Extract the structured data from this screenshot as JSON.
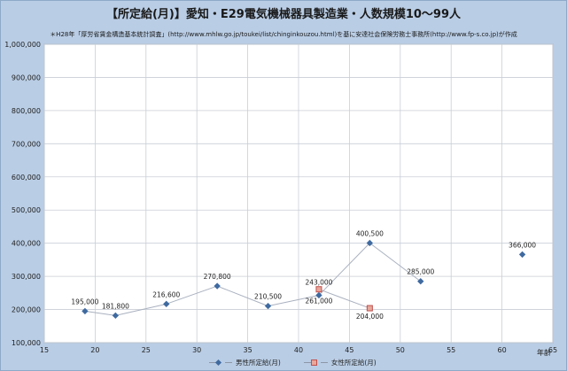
{
  "title": "【所定給(月)】愛知・E29電気機械器具製造業・人数規模10～99人",
  "subtitle": "＊H28年「厚労省賃金構造基本統計調査」(http://www.mhlw.go.jp/toukei/list/chinginkouzou.html)を基に安達社会保険労務士事務所(http://www.fp-s.co.jp)が作成",
  "colors": {
    "background": "#b9cde5",
    "plot_bg": "#ffffff",
    "male": "#3f6aa0",
    "female": "#c0504d",
    "line": "#a9b1bf"
  },
  "chart_data": {
    "type": "scatter",
    "x_unit_label": "年齢",
    "xlim": [
      15,
      65
    ],
    "ylim": [
      100000,
      1000000
    ],
    "x_ticks": [
      15,
      20,
      25,
      30,
      35,
      40,
      45,
      50,
      55,
      60,
      65
    ],
    "y_ticks": [
      100000,
      200000,
      300000,
      400000,
      500000,
      600000,
      700000,
      800000,
      900000,
      1000000
    ],
    "x_tick_labels": [
      "15",
      "20",
      "25",
      "30",
      "35",
      "40",
      "45",
      "50",
      "55",
      "60",
      "65"
    ],
    "y_tick_labels": [
      "100,000",
      "200,000",
      "300,000",
      "400,000",
      "500,000",
      "600,000",
      "700,000",
      "800,000",
      "900,000",
      "1,000,000"
    ],
    "grid": true,
    "legend_position": "bottom",
    "series": [
      {
        "name": "男性所定給(月)",
        "marker": "diamond",
        "points": [
          {
            "x": 19.0,
            "y": 195000,
            "label": "195,000"
          },
          {
            "x": 22.0,
            "y": 181800,
            "label": "181,800"
          },
          {
            "x": 27.0,
            "y": 216600,
            "label": "216,600"
          },
          {
            "x": 32.0,
            "y": 270800,
            "label": "270,800"
          },
          {
            "x": 37.0,
            "y": 210500,
            "label": "210,500"
          },
          {
            "x": 42.0,
            "y": 243000,
            "label": "243,000"
          },
          {
            "x": 47.0,
            "y": 400500,
            "label": "400,500"
          },
          {
            "x": 52.0,
            "y": 285000,
            "label": "285,000"
          },
          {
            "x": 62.0,
            "y": 366000,
            "label": "366,000"
          }
        ]
      },
      {
        "name": "女性所定給(月)",
        "marker": "square",
        "points": [
          {
            "x": 42.0,
            "y": 261000,
            "label": "261,000"
          },
          {
            "x": 47.0,
            "y": 204000,
            "label": "204,000"
          }
        ]
      }
    ]
  }
}
